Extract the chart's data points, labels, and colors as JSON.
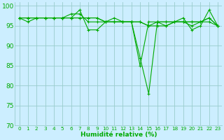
{
  "xlabel": "Humidité relative (%)",
  "ylabel": "",
  "bg_color": "#cceeff",
  "grid_color": "#99cccc",
  "line_color": "#00aa00",
  "marker_color": "#00aa00",
  "ylim": [
    70,
    101
  ],
  "xlim": [
    -0.5,
    23.5
  ],
  "yticks": [
    70,
    75,
    80,
    85,
    90,
    95,
    100
  ],
  "xticks": [
    0,
    1,
    2,
    3,
    4,
    5,
    6,
    7,
    8,
    9,
    10,
    11,
    12,
    13,
    14,
    15,
    16,
    17,
    18,
    19,
    20,
    21,
    22,
    23
  ],
  "series": [
    [
      97,
      96,
      97,
      97,
      97,
      97,
      97,
      99,
      94,
      94,
      96,
      96,
      96,
      96,
      87,
      78,
      96,
      95,
      96,
      97,
      94,
      95,
      99,
      95
    ],
    [
      97,
      97,
      97,
      97,
      97,
      97,
      98,
      98,
      96,
      96,
      96,
      97,
      96,
      96,
      85,
      96,
      96,
      96,
      96,
      96,
      96,
      96,
      97,
      95
    ],
    [
      97,
      97,
      97,
      97,
      97,
      97,
      97,
      97,
      97,
      97,
      96,
      96,
      96,
      96,
      96,
      95,
      95,
      95,
      96,
      96,
      95,
      96,
      97,
      95
    ],
    [
      97,
      97,
      97,
      97,
      97,
      97,
      97,
      97,
      97,
      97,
      96,
      96,
      96,
      96,
      96,
      95,
      96,
      96,
      96,
      96,
      96,
      96,
      96,
      95
    ]
  ],
  "figsize": [
    3.2,
    2.0
  ],
  "dpi": 100
}
